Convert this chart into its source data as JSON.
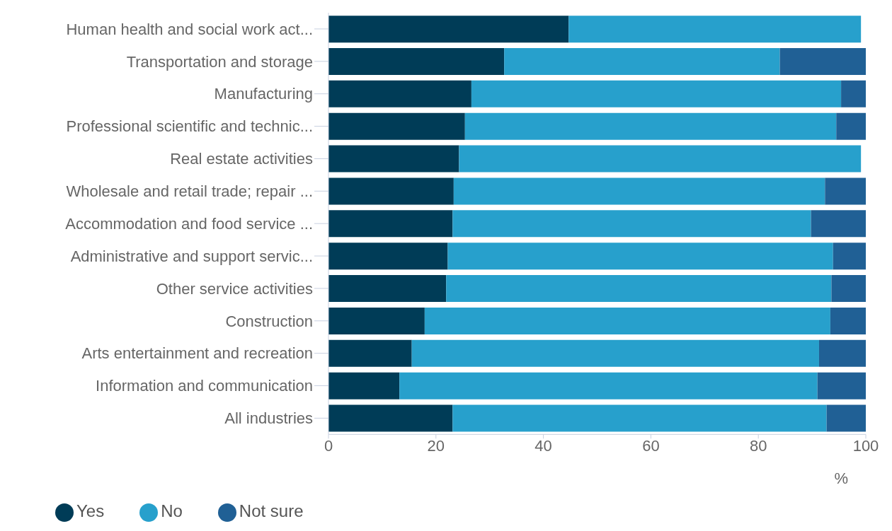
{
  "chart_data": {
    "type": "bar",
    "orientation": "horizontal",
    "stacked": true,
    "xlabel": "%",
    "categories": [
      "Human health and social work act...",
      "Transportation and storage",
      "Manufacturing",
      "Professional scientific and technic...",
      "Real estate activities",
      "Wholesale and retail trade; repair ...",
      "Accommodation and food service ...",
      "Administrative and support servic...",
      "Other service activities",
      "Construction",
      "Arts entertainment and recreation",
      "Information and communication",
      "All industries"
    ],
    "series": [
      {
        "name": "Yes",
        "color": "#003c57",
        "values": [
          44.7,
          32.7,
          26.6,
          25.4,
          24.3,
          23.3,
          23.1,
          22.2,
          21.9,
          17.9,
          15.5,
          13.2,
          23.1
        ]
      },
      {
        "name": "No",
        "color": "#27a0cc",
        "values": [
          54.4,
          51.3,
          68.8,
          69.1,
          74.8,
          69.1,
          66.7,
          71.7,
          71.7,
          75.5,
          75.8,
          77.8,
          69.6
        ]
      },
      {
        "name": "Not sure",
        "color": "#206095",
        "values": [
          null,
          16.0,
          4.6,
          5.5,
          null,
          7.6,
          10.2,
          6.1,
          6.4,
          6.6,
          8.7,
          9.0,
          7.3
        ]
      }
    ],
    "xlim": [
      0,
      100
    ],
    "xticks": [
      0,
      20,
      40,
      60,
      80,
      100
    ],
    "grid": false,
    "legend": "bottom left"
  }
}
